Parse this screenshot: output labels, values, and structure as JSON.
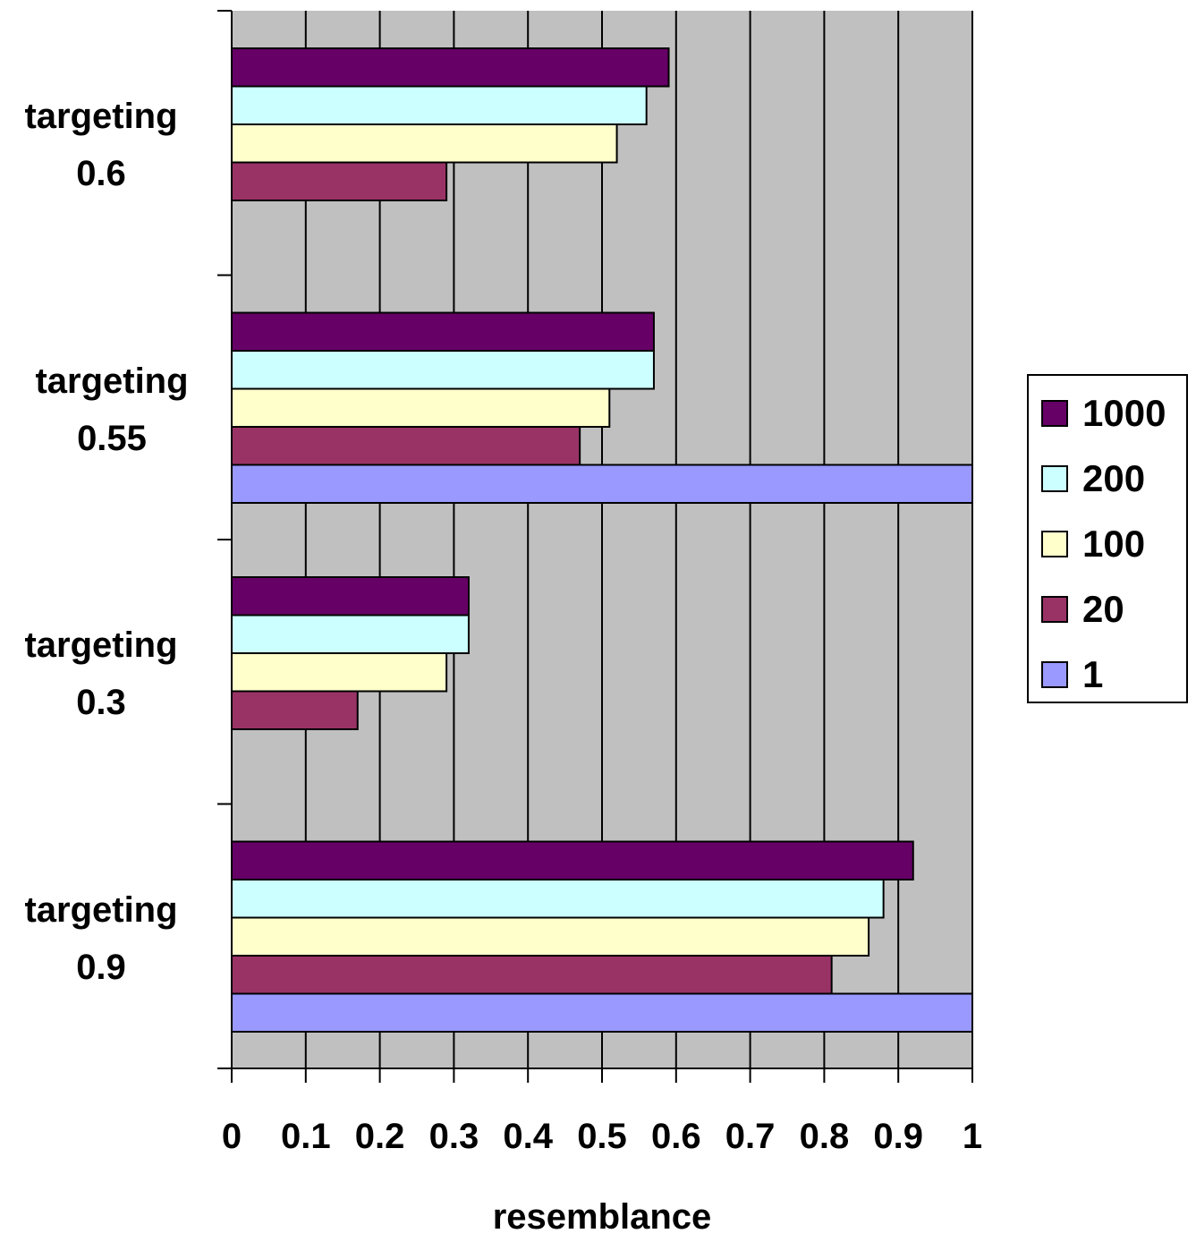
{
  "chart_data": {
    "type": "bar",
    "orientation": "horizontal",
    "categories": [
      "targeting 0.6",
      "targeting 0.55",
      "targeting 0.3",
      "targeting 0.9"
    ],
    "category_lines": [
      [
        "targeting",
        "0.6"
      ],
      [
        "targeting",
        "0.55"
      ],
      [
        "targeting",
        "0.3"
      ],
      [
        "targeting",
        "0.9"
      ]
    ],
    "series": [
      {
        "name": "1000",
        "color": "#660066",
        "values": [
          0.59,
          0.57,
          0.32,
          0.92
        ]
      },
      {
        "name": "200",
        "color": "#CCFFFF",
        "values": [
          0.56,
          0.57,
          0.32,
          0.88
        ]
      },
      {
        "name": "100",
        "color": "#FFFFCC",
        "values": [
          0.52,
          0.51,
          0.29,
          0.86
        ]
      },
      {
        "name": "20",
        "color": "#993366",
        "values": [
          0.29,
          0.47,
          0.17,
          0.81
        ]
      },
      {
        "name": "1",
        "color": "#9999FF",
        "values": [
          null,
          1.0,
          null,
          1.0
        ]
      }
    ],
    "xlabel": "resemblance",
    "ylabel": "",
    "title": "",
    "xlim": [
      0,
      1
    ],
    "xticks": [
      "0",
      "0.1",
      "0.2",
      "0.3",
      "0.4",
      "0.5",
      "0.6",
      "0.7",
      "0.8",
      "0.9",
      "1"
    ],
    "grid": true,
    "plot_background": "#C0C0C0",
    "legend_position": "right"
  }
}
